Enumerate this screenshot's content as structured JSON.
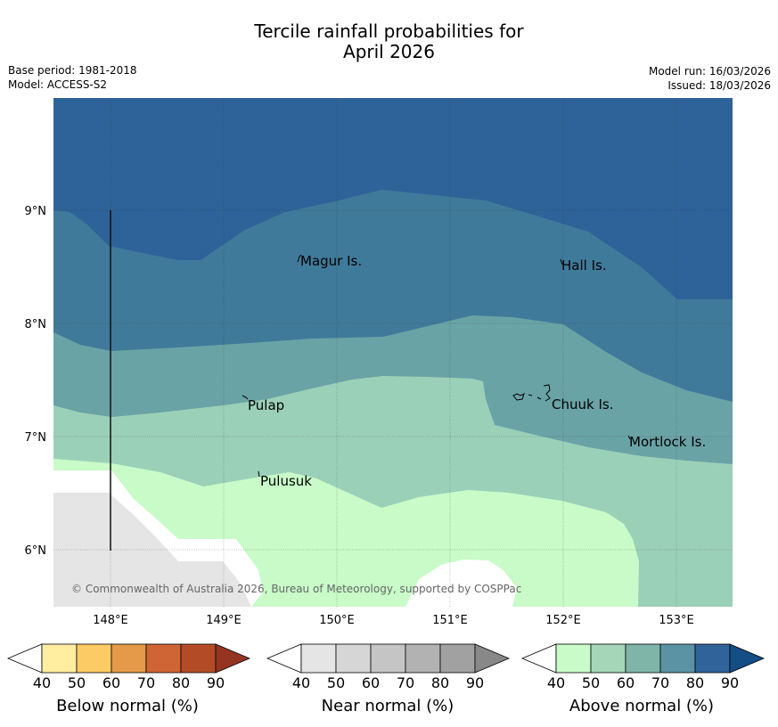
{
  "title": {
    "line1": "Tercile rainfall probabilities for",
    "line2": "April 2026"
  },
  "meta": {
    "base_period": "Base period: 1981-2018",
    "model": "Model: ACCESS-S2",
    "model_run": "Model run: 16/03/2026",
    "issued": "Issued: 18/03/2026"
  },
  "map": {
    "latitude_labels": [
      "9°N",
      "8°N",
      "7°N",
      "6°N"
    ],
    "longitude_labels": [
      "148°E",
      "149°E",
      "150°E",
      "151°E",
      "152°E",
      "153°E"
    ],
    "places": [
      "Magur Is.",
      "Hall Is.",
      "Pulap",
      "Chuuk Is.",
      "Mortlock Is.",
      "Pulusuk"
    ],
    "credit": "© Commonwealth of Australia 2026, Bureau of Meteorology, supported by COSPPac",
    "category_colors": {
      "above_90": "#2e6399",
      "above_80": "#3f7a9a",
      "above_70": "#6aa3a6",
      "above_60": "#9bd0b8",
      "above_50": "#c8fbc8",
      "near_40": "#e5e5e5",
      "neutral": "#ffffff"
    }
  },
  "colorbars": [
    {
      "title": "Below normal (%)",
      "ticks": [
        "40",
        "50",
        "60",
        "70",
        "80",
        "90"
      ],
      "colors": [
        "#ffeea0",
        "#fdcb65",
        "#e49a48",
        "#cf6535",
        "#b34c26",
        "#963422"
      ]
    },
    {
      "title": "Near normal (%)",
      "ticks": [
        "40",
        "50",
        "60",
        "70",
        "80",
        "90"
      ],
      "colors": [
        "#e5e5e5",
        "#d6d6d6",
        "#c5c5c5",
        "#b2b2b2",
        "#a1a1a1",
        "#888888"
      ]
    },
    {
      "title": "Above normal (%)",
      "ticks": [
        "40",
        "50",
        "60",
        "70",
        "80",
        "90"
      ],
      "colors": [
        "#c8fbc8",
        "#a5d6b8",
        "#7fb5a8",
        "#5b93a4",
        "#2f6399",
        "#154d85"
      ]
    }
  ]
}
